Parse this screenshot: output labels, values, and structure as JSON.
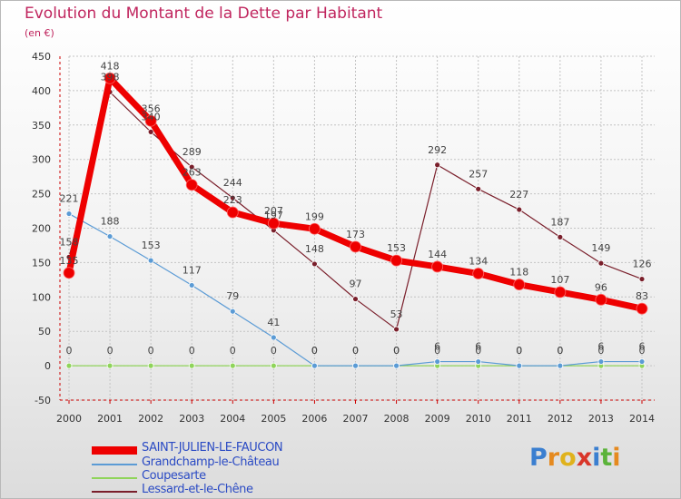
{
  "header": {
    "title": "Evolution du Montant de la Dette par Habitant",
    "subtitle": "(en €)"
  },
  "logo": {
    "text": "Proxiti"
  },
  "colors": {
    "title": "#c0255e",
    "legend_text": "#2b4bc4",
    "axis": "#cc0000",
    "grid": "#bdbdbd"
  },
  "chart_data": {
    "type": "line",
    "title": "Evolution du Montant de la Dette par Habitant",
    "subtitle": "(en €)",
    "xlabel": "",
    "ylabel": "",
    "categories": [
      "2000",
      "2001",
      "2002",
      "2003",
      "2004",
      "2005",
      "2006",
      "2007",
      "2008",
      "2009",
      "2010",
      "2011",
      "2012",
      "2013",
      "2014"
    ],
    "ylim": [
      -50,
      450
    ],
    "yticks": [
      -50,
      0,
      50,
      100,
      150,
      200,
      250,
      300,
      350,
      400,
      450
    ],
    "grid": true,
    "legend_position": "bottom-left",
    "series": [
      {
        "name": "SAINT-JULIEN-LE-FAUCON",
        "color": "#ee0000",
        "values": [
          135,
          418,
          356,
          263,
          223,
          207,
          199,
          173,
          153,
          144,
          134,
          118,
          107,
          96,
          83
        ],
        "labels": [
          "135",
          "418",
          "356",
          "263",
          "223",
          "207",
          "199",
          "173",
          "153",
          "144",
          "134",
          "118",
          "107",
          "96",
          "83"
        ]
      },
      {
        "name": "Grandchamp-le-Château",
        "color": "#5b9bd5",
        "values": [
          221,
          188,
          153,
          117,
          79,
          41,
          0,
          0,
          0,
          6,
          6,
          0,
          0,
          6,
          6
        ],
        "labels": [
          "221",
          "188",
          "153",
          "117",
          "79",
          "41",
          "0",
          "0",
          "0",
          "6",
          "6",
          "0",
          "0",
          "6",
          "6"
        ]
      },
      {
        "name": "Coupesarte",
        "color": "#8fd45a",
        "values": [
          0,
          0,
          0,
          0,
          0,
          0,
          0,
          0,
          0,
          0,
          0,
          0,
          0,
          0,
          0
        ],
        "labels": [
          "0",
          "0",
          "0",
          "0",
          "0",
          "0",
          "0",
          "0",
          "0",
          "0",
          "0",
          "0",
          "0",
          "0",
          "0"
        ]
      },
      {
        "name": "Lessard-et-le-Chêne",
        "color": "#7a1f2b",
        "values": [
          158,
          398,
          340,
          289,
          244,
          197,
          148,
          97,
          53,
          292,
          257,
          227,
          187,
          149,
          126
        ],
        "labels": [
          "158",
          "398",
          "340",
          "289",
          "244",
          "197",
          "148",
          "97",
          "53",
          "292",
          "257",
          "227",
          "187",
          "149",
          "126"
        ]
      }
    ]
  }
}
